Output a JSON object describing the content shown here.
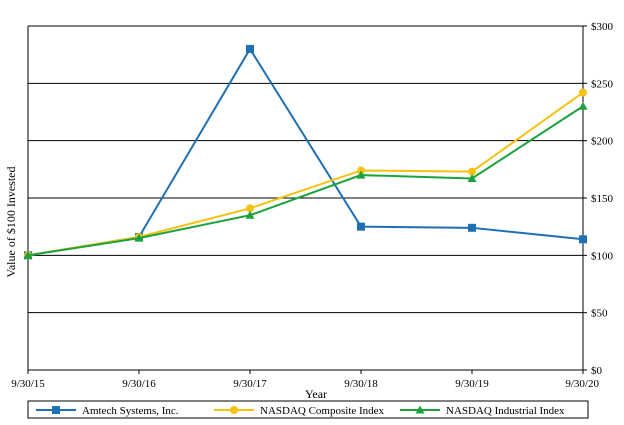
{
  "chart_data": {
    "type": "line",
    "title": "",
    "xlabel": "Year",
    "ylabel": "Value of $100 Invested",
    "categories": [
      "9/30/15",
      "9/30/16",
      "9/30/17",
      "9/30/18",
      "9/30/19",
      "9/30/20"
    ],
    "ylim": [
      0,
      300
    ],
    "yticks": [
      0,
      50,
      100,
      150,
      200,
      250,
      300
    ],
    "ytick_labels": [
      "$0",
      "$50",
      "$100",
      "$150",
      "$200",
      "$250",
      "$300"
    ],
    "y_axis_side": "right",
    "grid": true,
    "legend_position": "bottom",
    "series": [
      {
        "name": "Amtech Systems, Inc.",
        "color": "#1f6fb4",
        "marker": "square",
        "values": [
          100,
          116,
          280,
          125,
          124,
          114
        ]
      },
      {
        "name": "NASDAQ Composite Index",
        "color": "#f5c211",
        "marker": "circle",
        "values": [
          100,
          116,
          141,
          174,
          173,
          242
        ]
      },
      {
        "name": "NASDAQ Industrial Index",
        "color": "#1aa33c",
        "marker": "triangle",
        "values": [
          100,
          115,
          135,
          170,
          167,
          230
        ]
      }
    ]
  }
}
